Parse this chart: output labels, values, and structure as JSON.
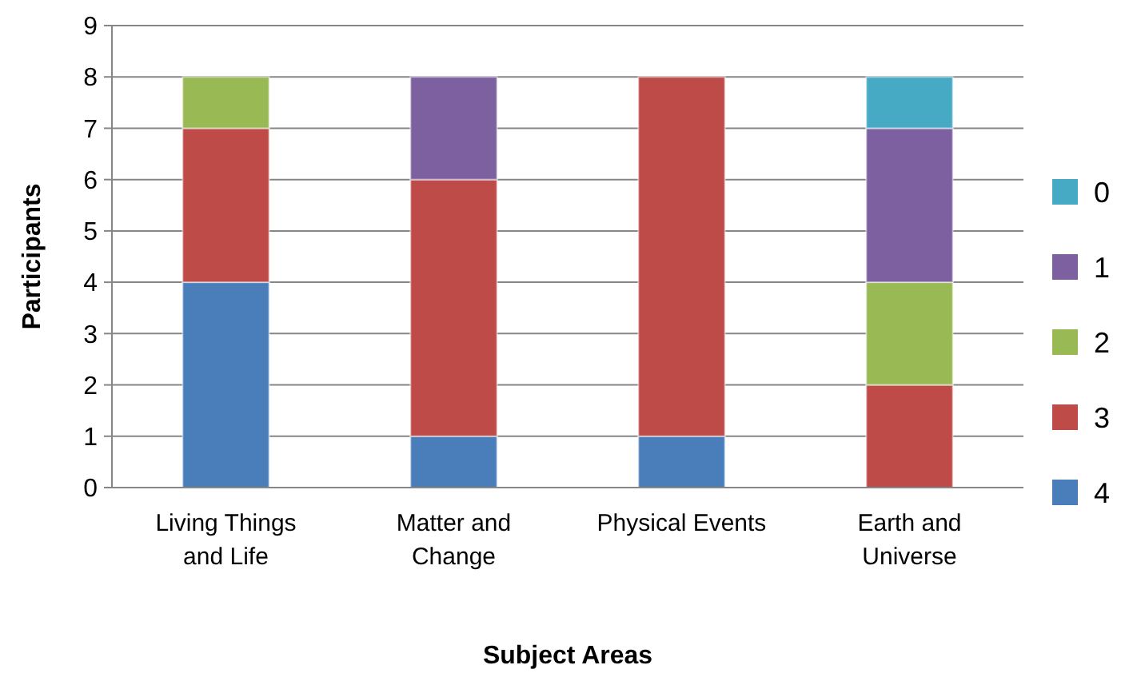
{
  "chart_data": {
    "type": "bar",
    "stacked": true,
    "xlabel": "Subject Areas",
    "ylabel": "Participants",
    "categories": [
      "Living Things and Life",
      "Matter and Change",
      "Physical Events",
      "Earth and Universe"
    ],
    "series": [
      {
        "name": "4",
        "color": "#4a7ebb",
        "values": [
          4,
          1,
          1,
          0
        ]
      },
      {
        "name": "3",
        "color": "#be4b48",
        "values": [
          3,
          5,
          7,
          2
        ]
      },
      {
        "name": "2",
        "color": "#98b954",
        "values": [
          1,
          0,
          0,
          2
        ]
      },
      {
        "name": "1",
        "color": "#7d60a0",
        "values": [
          0,
          2,
          0,
          3
        ]
      },
      {
        "name": "0",
        "color": "#46aac5",
        "values": [
          0,
          0,
          0,
          1
        ]
      }
    ],
    "ylim": [
      0,
      9
    ],
    "yticks": [
      0,
      1,
      2,
      3,
      4,
      5,
      6,
      7,
      8,
      9
    ],
    "grid": "y",
    "legend": "right"
  }
}
